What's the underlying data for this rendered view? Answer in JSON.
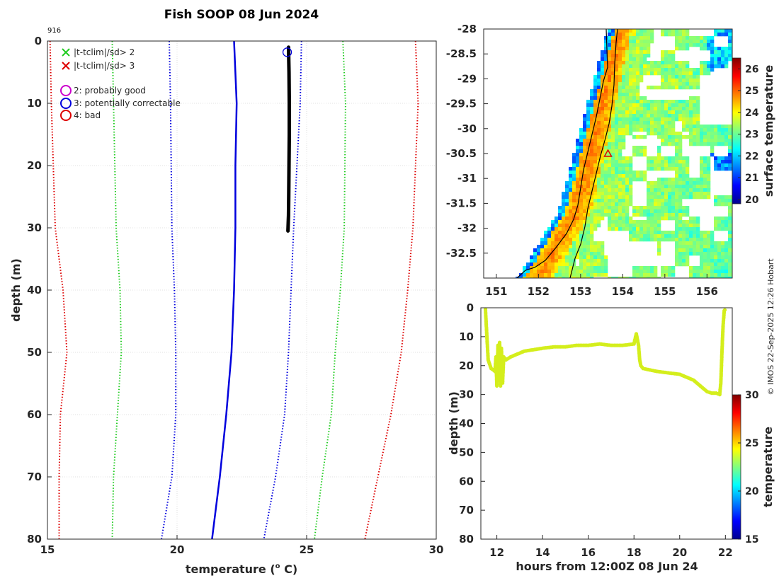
{
  "chart_data": [
    {
      "type": "line",
      "title": "Fish SOOP 08 Jun 2024",
      "id_label": "916",
      "xlabel": "temperature (° C)",
      "xlabel_pre": "temperature (",
      "xlabel_sup": "o",
      "xlabel_post": " C)",
      "ylabel": "depth (m)",
      "xlim": [
        15,
        30
      ],
      "ylim": [
        0,
        80
      ],
      "xticks": [
        "15",
        "20",
        "25",
        "30"
      ],
      "yticks": [
        "0",
        "10",
        "20",
        "30",
        "40",
        "50",
        "60",
        "70",
        "80"
      ],
      "grid": true,
      "legend": [
        {
          "marker": "x",
          "color": "#22cc22",
          "label": "|t-tclim|/sd> 2"
        },
        {
          "marker": "x",
          "color": "#dd0000",
          "label": "|t-tclim|/sd> 3"
        },
        {
          "marker": "o",
          "color": "#cc00cc",
          "label": "2: probably good"
        },
        {
          "marker": "o",
          "color": "#0000dd",
          "label": "3: potentially correctable"
        },
        {
          "marker": "o",
          "color": "#dd0000",
          "label": "4: bad"
        }
      ],
      "series": [
        {
          "name": "climatology mean",
          "style": "solid",
          "color": "#0000dd",
          "depth": [
            0,
            10,
            20,
            30,
            40,
            50,
            60,
            70,
            75,
            80
          ],
          "values": [
            22.2,
            22.3,
            22.25,
            22.25,
            22.2,
            22.1,
            21.9,
            21.65,
            21.5,
            21.35
          ]
        },
        {
          "name": "mean - 1sd",
          "style": "dotted",
          "color": "#0000dd",
          "depth": [
            0,
            10,
            30,
            40,
            50,
            60,
            70,
            80
          ],
          "values": [
            19.7,
            19.75,
            19.8,
            19.9,
            19.95,
            19.95,
            19.8,
            19.4
          ]
        },
        {
          "name": "mean + 1sd",
          "style": "dotted",
          "color": "#0000dd",
          "depth": [
            0,
            10,
            30,
            40,
            50,
            60,
            70,
            80
          ],
          "values": [
            24.8,
            24.75,
            24.5,
            24.4,
            24.3,
            24.15,
            23.8,
            23.35
          ]
        },
        {
          "name": "mean - 2sd",
          "style": "dotted",
          "color": "#22cc22",
          "depth": [
            0,
            10,
            30,
            40,
            50,
            60,
            70,
            80
          ],
          "values": [
            17.5,
            17.55,
            17.65,
            17.8,
            17.85,
            17.7,
            17.55,
            17.5
          ]
        },
        {
          "name": "mean + 2sd",
          "style": "dotted",
          "color": "#22cc22",
          "depth": [
            0,
            10,
            30,
            40,
            50,
            60,
            70,
            80
          ],
          "values": [
            26.4,
            26.5,
            26.45,
            26.3,
            26.1,
            25.95,
            25.6,
            25.3
          ]
        },
        {
          "name": "mean - 3sd",
          "style": "dotted",
          "color": "#dd0000",
          "depth": [
            0,
            10,
            30,
            40,
            50,
            60,
            70,
            80
          ],
          "values": [
            15.1,
            15.15,
            15.3,
            15.6,
            15.75,
            15.5,
            15.45,
            15.45
          ]
        },
        {
          "name": "mean + 3sd",
          "style": "dotted",
          "color": "#dd0000",
          "depth": [
            0,
            10,
            30,
            40,
            50,
            60,
            70,
            80
          ],
          "values": [
            29.2,
            29.3,
            29.1,
            28.9,
            28.65,
            28.25,
            27.75,
            27.25
          ]
        },
        {
          "name": "profile",
          "style": "thick",
          "color": "#000000",
          "depth": [
            1,
            5,
            10,
            15,
            20,
            25,
            28,
            30.5
          ],
          "values": [
            24.3,
            24.32,
            24.33,
            24.33,
            24.32,
            24.31,
            24.3,
            24.28
          ]
        }
      ],
      "flag_marker": {
        "depth": 1,
        "temperature": 24.25,
        "color": "#0000dd"
      }
    },
    {
      "type": "heatmap",
      "xlim": [
        150.7,
        156.6
      ],
      "ylim": [
        -33,
        -28
      ],
      "xticks": [
        "151",
        "152",
        "153",
        "154",
        "155",
        "156"
      ],
      "yticks": [
        "-28",
        "-28.5",
        "-29",
        "-29.5",
        "-30",
        "-30.5",
        "-31",
        "-31.5",
        "-32",
        "-32.5"
      ],
      "colorbar_label": "surface temperature",
      "colorbar_ticks": [
        "20",
        "21",
        "22",
        "23",
        "24",
        "25",
        "26"
      ],
      "clim": [
        19.8,
        26.5
      ],
      "station": {
        "lon": 153.65,
        "lat": -30.5
      }
    },
    {
      "type": "scatter",
      "xlabel": "hours from 12:00Z 08 Jun 24",
      "ylabel": "depth (m)",
      "xlim": [
        11.3,
        22.3
      ],
      "ylim": [
        0,
        80
      ],
      "xticks": [
        "12",
        "14",
        "16",
        "18",
        "20",
        "22"
      ],
      "yticks": [
        "0",
        "10",
        "20",
        "30",
        "40",
        "50",
        "60",
        "70",
        "80"
      ],
      "colorbar_label": "temperature",
      "colorbar_ticks": [
        "15",
        "20",
        "25",
        "30"
      ],
      "clim": [
        15,
        30
      ],
      "point_color": "#d4ee1c",
      "track": {
        "hours": [
          11.5,
          11.62,
          11.75,
          11.85,
          11.92,
          11.96,
          12.0,
          12.05,
          12.08,
          12.12,
          12.16,
          12.2,
          12.25,
          12.3,
          12.4,
          12.6,
          12.9,
          13.2,
          13.6,
          14.0,
          14.5,
          15.0,
          15.5,
          16.0,
          16.5,
          17.0,
          17.5,
          18.0,
          18.1,
          18.2,
          18.25,
          18.3,
          18.4,
          18.7,
          19.0,
          19.5,
          20.0,
          20.3,
          20.6,
          20.9,
          21.2,
          21.4,
          21.6,
          21.75,
          21.8,
          21.85,
          21.9,
          21.95,
          22.0
        ],
        "depths": [
          0.5,
          18,
          21,
          21.5,
          22,
          17,
          27,
          13,
          25,
          12,
          27,
          14,
          26,
          17,
          18,
          17,
          16,
          15,
          14.5,
          14,
          13.5,
          13.5,
          13,
          13,
          12.5,
          13,
          13,
          12.5,
          9,
          13,
          18,
          20,
          21,
          21.5,
          22,
          22.5,
          23,
          24,
          25,
          27,
          29,
          29.5,
          29.5,
          30,
          26,
          15,
          6,
          1,
          0.5
        ]
      }
    }
  ],
  "watermark": "©  IMOS 22-Sep-2025 12:26 Hobart"
}
